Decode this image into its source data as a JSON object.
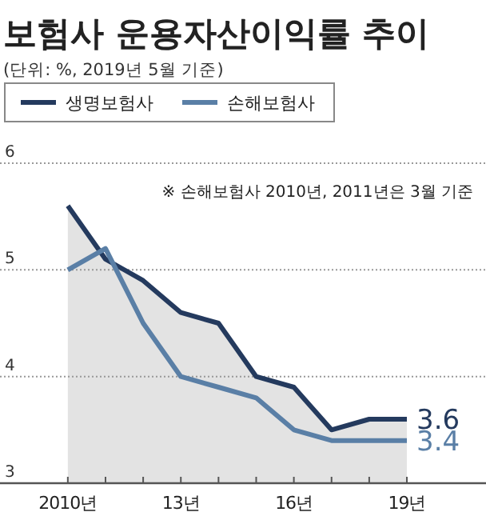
{
  "chart_data": {
    "type": "line",
    "title": "보험사 운용자산이익률 추이",
    "subtitle": "(단위: %, 2019년 5월 기준)",
    "annotations": [
      "※ 손해보험사 2010년, 2011년은 3월 기준"
    ],
    "categories": [
      "2010년",
      null,
      null,
      "13년",
      null,
      null,
      "16년",
      null,
      null,
      "19년"
    ],
    "series": [
      {
        "name": "생명보험사",
        "type": "area",
        "color": "#243a5e",
        "values": [
          5.6,
          5.1,
          4.9,
          4.6,
          4.5,
          4.0,
          3.9,
          3.5,
          3.6,
          3.6
        ],
        "value_labels": [
          null,
          null,
          null,
          null,
          null,
          null,
          null,
          null,
          null,
          "3.6"
        ]
      },
      {
        "name": "손해보험사",
        "color": "#5a7fa6",
        "values": [
          5.0,
          5.2,
          4.5,
          4.0,
          3.9,
          3.8,
          3.5,
          3.4,
          3.4,
          3.4
        ],
        "value_labels": [
          null,
          null,
          null,
          null,
          null,
          null,
          null,
          null,
          null,
          "3.4"
        ]
      }
    ],
    "ylim": [
      3,
      6
    ],
    "yticks": [
      3,
      4,
      5,
      6
    ],
    "grid": "y",
    "legend": "top left",
    "marker": "none",
    "line_style": "solid"
  }
}
